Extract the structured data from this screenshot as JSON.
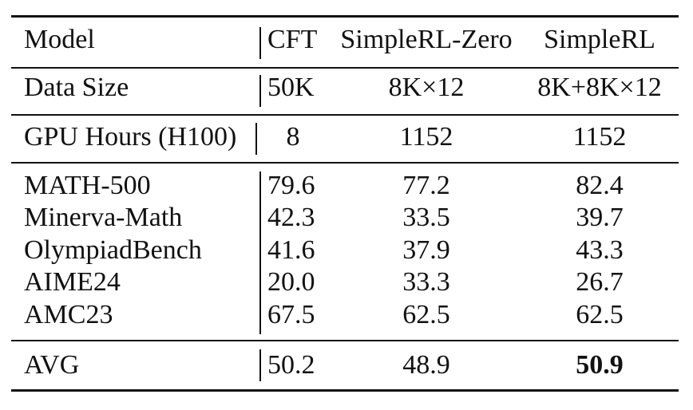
{
  "table": {
    "header": [
      "Model",
      "CFT",
      "SimpleRL-Zero",
      "SimpleRL"
    ],
    "data_size": [
      "Data Size",
      "50K",
      "8K×12",
      "8K+8K×12"
    ],
    "gpu_hours": [
      "GPU Hours (H100)",
      "8",
      "1152",
      "1152"
    ],
    "benchmarks": [
      [
        "MATH-500",
        "79.6",
        "77.2",
        "82.4"
      ],
      [
        "Minerva-Math",
        "42.3",
        "33.5",
        "39.7"
      ],
      [
        "OlympiadBench",
        "41.6",
        "37.9",
        "43.3"
      ],
      [
        "AIME24",
        "20.0",
        "33.3",
        "26.7"
      ],
      [
        "AMC23",
        "67.5",
        "62.5",
        "62.5"
      ]
    ],
    "avg": [
      "AVG",
      "50.2",
      "48.9",
      "50.9"
    ],
    "bold_cell": "avg.3"
  }
}
